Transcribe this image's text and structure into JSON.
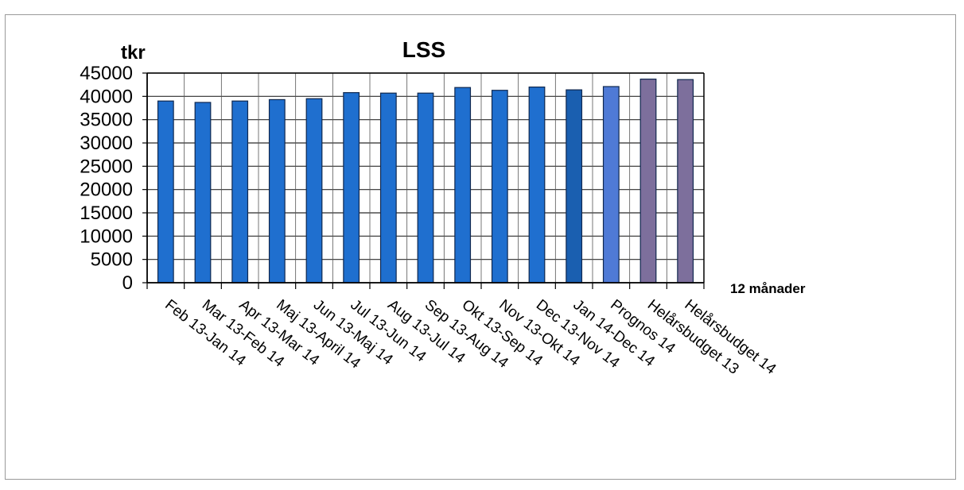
{
  "chart_data": {
    "type": "bar",
    "title": "LSS",
    "ylabel": "tkr",
    "xlabel": "12 månader",
    "ylim": [
      0,
      45000
    ],
    "yticks": [
      "0",
      "5000",
      "10000",
      "15000",
      "20000",
      "25000",
      "30000",
      "35000",
      "40000",
      "45000"
    ],
    "grid": true,
    "categories": [
      "Feb 13-Jan 14",
      "Mar 13-Feb 14",
      "Apr 13-Mar 14",
      "Maj 13-April 14",
      "Jun 13-Maj 14",
      "Jul 13-Jun 14",
      "Aug 13-Jul 14",
      "Sep 13-Aug 14",
      "Okt 13-Sep 14",
      "Nov 13-Okt 14",
      "Dec 13-Nov 14",
      "Jan 14-Dec 14",
      "Prognos 14",
      "Helårsbudget 13",
      "Helårsbudget 14"
    ],
    "values": [
      39000,
      38700,
      39000,
      39300,
      39500,
      40800,
      40700,
      40700,
      41900,
      41300,
      42000,
      41400,
      42100,
      43700,
      43600
    ],
    "bar_colors": [
      "#1f6fcf",
      "#1f6fcf",
      "#1f6fcf",
      "#1f6fcf",
      "#1f6fcf",
      "#1f6fcf",
      "#1f6fcf",
      "#1f6fcf",
      "#1f6fcf",
      "#1f6fcf",
      "#1f6fcf",
      "#1a5fb0",
      "#4f7ad6",
      "#7d6f9c",
      "#7d6f9c"
    ]
  }
}
